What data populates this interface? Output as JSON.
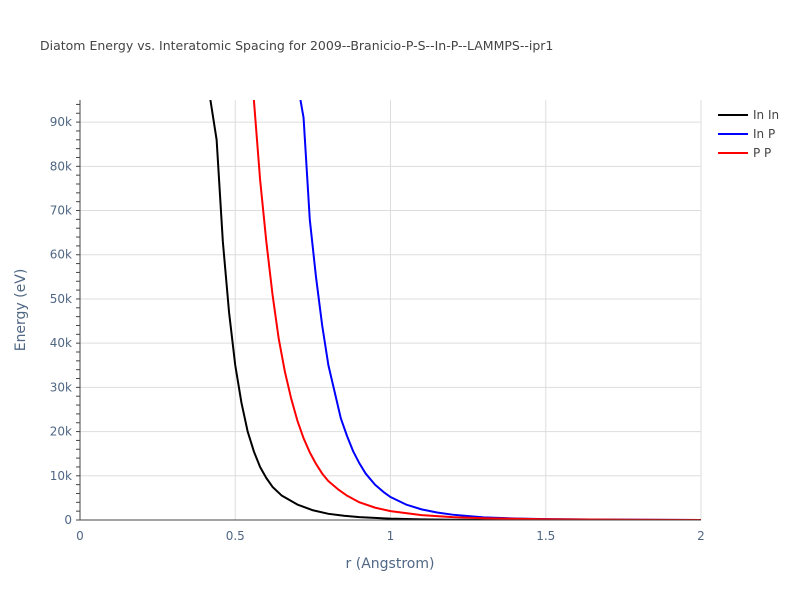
{
  "chart_data": {
    "type": "line",
    "title": "Diatom Energy vs. Interatomic Spacing for 2009--Branicio-P-S--In-P--LAMMPS--ipr1",
    "xlabel": "r (Angstrom)",
    "ylabel": "Energy (eV)",
    "xlim": [
      0,
      2
    ],
    "ylim": [
      0,
      95000
    ],
    "x_ticks": [
      0,
      0.5,
      1,
      1.5,
      2
    ],
    "x_tick_labels": [
      "0",
      "0.5",
      "1",
      "1.5",
      "2"
    ],
    "y_ticks": [
      0,
      10000,
      20000,
      30000,
      40000,
      50000,
      60000,
      70000,
      80000,
      90000
    ],
    "y_tick_labels": [
      "0",
      "10k",
      "20k",
      "30k",
      "40k",
      "50k",
      "60k",
      "70k",
      "80k",
      "90k"
    ],
    "grid": true,
    "legend_position": "top-right",
    "series": [
      {
        "name": "In In",
        "color": "#000000",
        "points": [
          [
            0.42,
            95000
          ],
          [
            0.44,
            86000
          ],
          [
            0.46,
            63000
          ],
          [
            0.48,
            47000
          ],
          [
            0.5,
            35000
          ],
          [
            0.52,
            26500
          ],
          [
            0.54,
            20000
          ],
          [
            0.56,
            15500
          ],
          [
            0.58,
            12000
          ],
          [
            0.6,
            9500
          ],
          [
            0.62,
            7500
          ],
          [
            0.65,
            5500
          ],
          [
            0.7,
            3500
          ],
          [
            0.75,
            2200
          ],
          [
            0.8,
            1400
          ],
          [
            0.85,
            950
          ],
          [
            0.9,
            650
          ],
          [
            1.0,
            300
          ],
          [
            1.1,
            150
          ],
          [
            1.2,
            70
          ],
          [
            1.3,
            30
          ],
          [
            1.5,
            10
          ],
          [
            2.0,
            0
          ]
        ]
      },
      {
        "name": "In P",
        "color": "#0000ff",
        "points": [
          [
            0.71,
            95000
          ],
          [
            0.72,
            91000
          ],
          [
            0.74,
            68000
          ],
          [
            0.76,
            55000
          ],
          [
            0.78,
            44000
          ],
          [
            0.8,
            35000
          ],
          [
            0.82,
            29000
          ],
          [
            0.84,
            23000
          ],
          [
            0.86,
            19000
          ],
          [
            0.88,
            15500
          ],
          [
            0.9,
            12800
          ],
          [
            0.92,
            10500
          ],
          [
            0.95,
            8000
          ],
          [
            0.98,
            6200
          ],
          [
            1.0,
            5200
          ],
          [
            1.05,
            3500
          ],
          [
            1.1,
            2400
          ],
          [
            1.15,
            1700
          ],
          [
            1.2,
            1200
          ],
          [
            1.3,
            600
          ],
          [
            1.4,
            350
          ],
          [
            1.5,
            200
          ],
          [
            1.7,
            80
          ],
          [
            2.0,
            0
          ]
        ]
      },
      {
        "name": "P P",
        "color": "#ff0000",
        "points": [
          [
            0.56,
            95000
          ],
          [
            0.58,
            77000
          ],
          [
            0.6,
            63000
          ],
          [
            0.62,
            51000
          ],
          [
            0.64,
            41000
          ],
          [
            0.66,
            33500
          ],
          [
            0.68,
            27500
          ],
          [
            0.7,
            22500
          ],
          [
            0.72,
            18500
          ],
          [
            0.74,
            15300
          ],
          [
            0.76,
            12700
          ],
          [
            0.78,
            10500
          ],
          [
            0.8,
            8800
          ],
          [
            0.83,
            7000
          ],
          [
            0.86,
            5500
          ],
          [
            0.9,
            4000
          ],
          [
            0.95,
            2800
          ],
          [
            1.0,
            2000
          ],
          [
            1.1,
            1100
          ],
          [
            1.2,
            650
          ],
          [
            1.3,
            400
          ],
          [
            1.5,
            180
          ],
          [
            1.7,
            80
          ],
          [
            2.0,
            0
          ]
        ]
      }
    ]
  }
}
